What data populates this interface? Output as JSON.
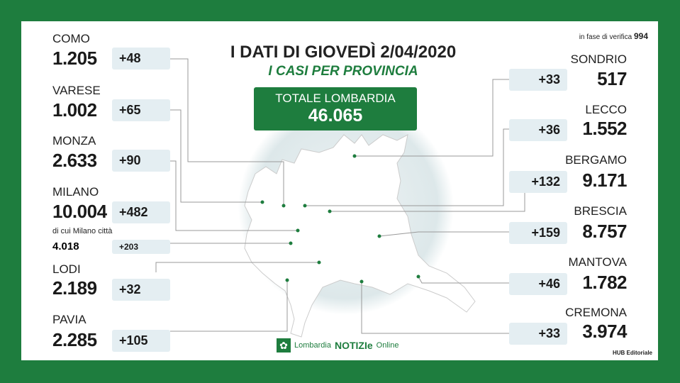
{
  "header": {
    "title": "I DATI DI GIOVEDÌ 2/04/2020",
    "subtitle": "I CASI PER PROVINCIA",
    "verify_label": "in fase di verifica",
    "verify_value": "994"
  },
  "total": {
    "label": "TOTALE LOMBARDIA",
    "value": "46.065"
  },
  "left": [
    {
      "name": "COMO",
      "value": "1.205",
      "delta": "+48"
    },
    {
      "name": "VARESE",
      "value": "1.002",
      "delta": "+65"
    },
    {
      "name": "MONZA",
      "value": "2.633",
      "delta": "+90"
    },
    {
      "name": "MILANO",
      "value": "10.004",
      "delta": "+482"
    },
    {
      "name": "LODI",
      "value": "2.189",
      "delta": "+32"
    },
    {
      "name": "PAVIA",
      "value": "2.285",
      "delta": "+105"
    }
  ],
  "milano_city": {
    "label": "di cui Milano città",
    "value": "4.018",
    "delta": "+203"
  },
  "right": [
    {
      "name": "SONDRIO",
      "value": "517",
      "delta": "+33"
    },
    {
      "name": "LECCO",
      "value": "1.552",
      "delta": "+36"
    },
    {
      "name": "BERGAMO",
      "value": "9.171",
      "delta": "+132"
    },
    {
      "name": "BRESCIA",
      "value": "8.757",
      "delta": "+159"
    },
    {
      "name": "MANTOVA",
      "value": "1.782",
      "delta": "+46"
    },
    {
      "name": "CREMONA",
      "value": "3.974",
      "delta": "+33"
    }
  ],
  "footer": {
    "logo_a": "Lombardia",
    "logo_b": "NOTIZIe",
    "logo_c": "Online",
    "credit": "HUB Editoriale"
  },
  "colors": {
    "brand_green": "#1e7d3e",
    "badge_bg": "#e4eef2"
  }
}
